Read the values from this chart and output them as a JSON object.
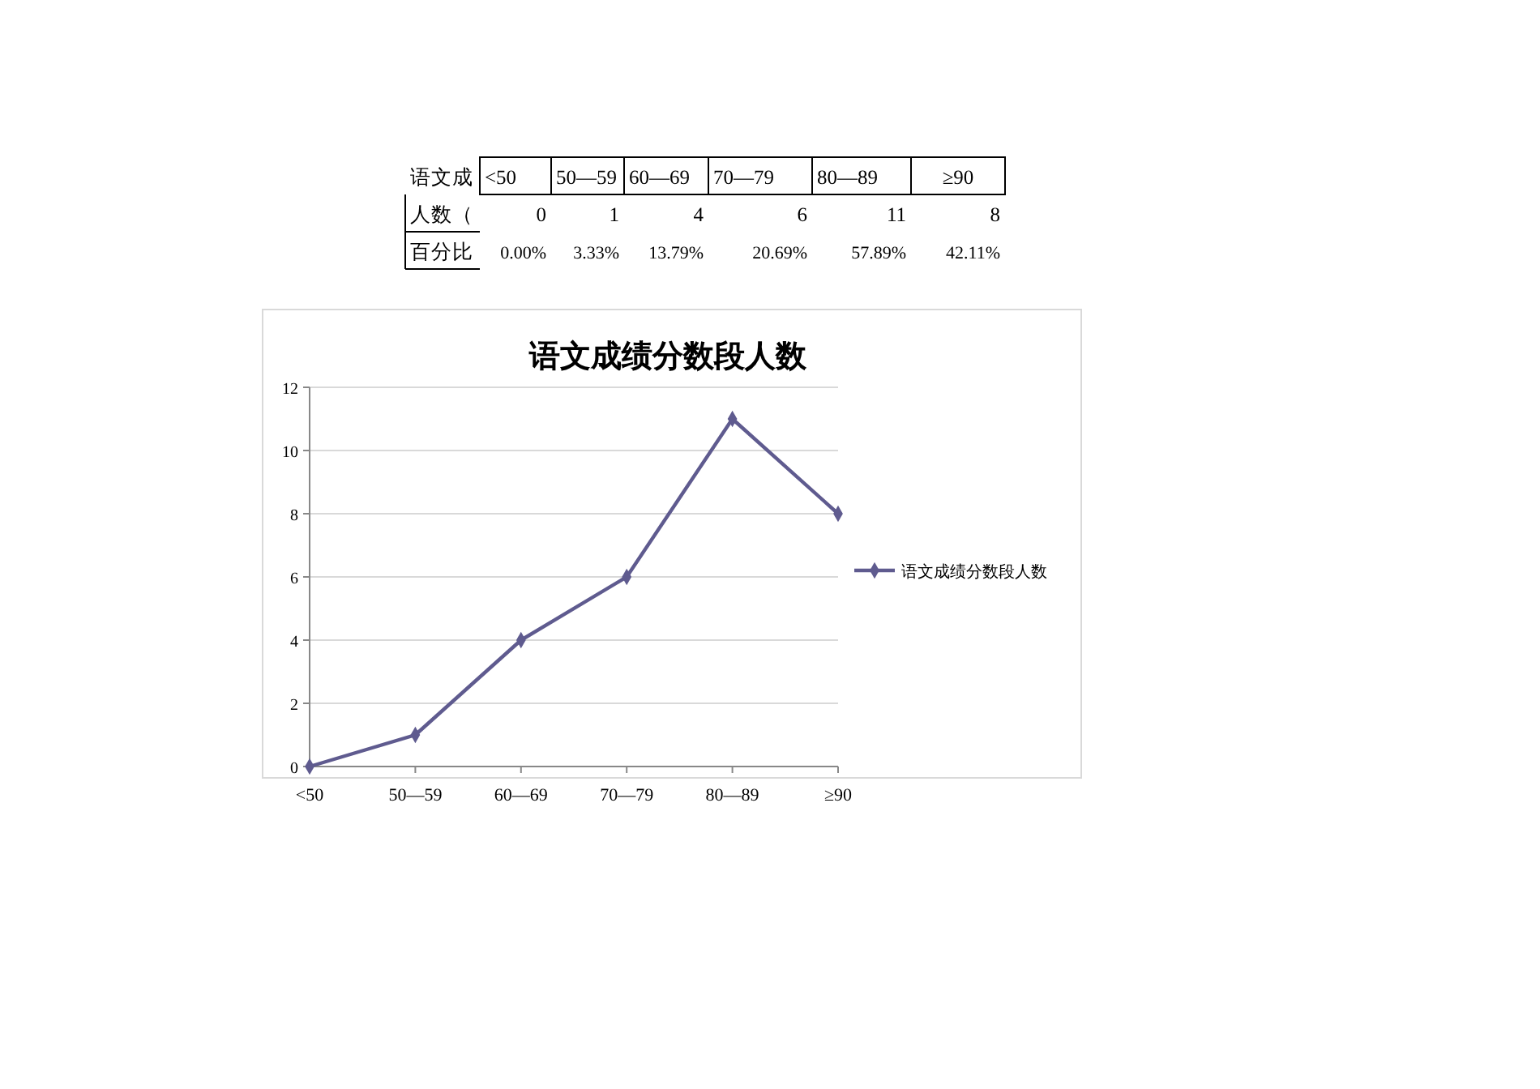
{
  "chart_data": {
    "type": "line",
    "title": "语文成绩分数段人数",
    "categories": [
      "<50",
      "50—59",
      "60—69",
      "70—79",
      "80—89",
      "≥90"
    ],
    "series": [
      {
        "name": "语文成绩分数段人数",
        "color": "#5f5b8f",
        "values": [
          0,
          1,
          4,
          6,
          11,
          8
        ]
      }
    ],
    "ylim": [
      0,
      12
    ],
    "yticks": [
      0,
      2,
      4,
      6,
      8,
      10,
      12
    ],
    "grid": "y",
    "legend": "right",
    "marker": "diamond",
    "annotations": [
      "语文成",
      "人数（",
      "百分比",
      "0",
      "1",
      "4",
      "6",
      "11",
      "8",
      "0.00%",
      "3.33%",
      "13.79%",
      "20.69%",
      "57.89%",
      "42.11%"
    ]
  }
}
